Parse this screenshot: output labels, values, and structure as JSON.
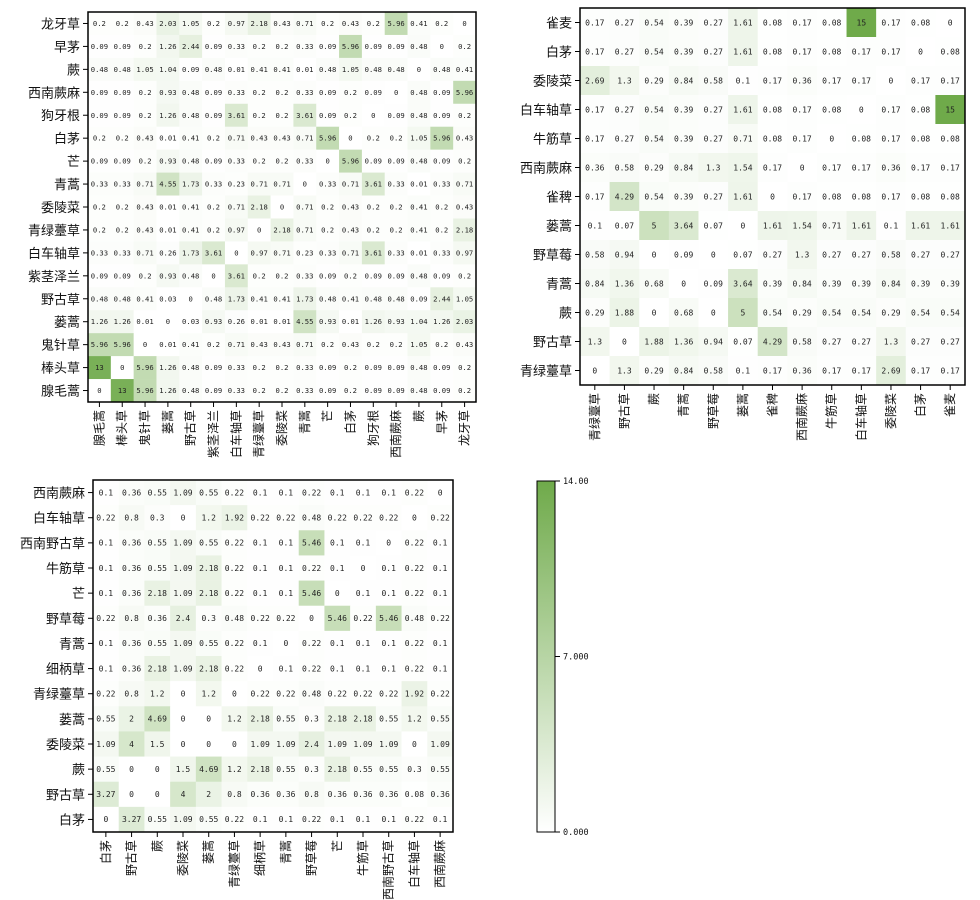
{
  "colors": {
    "low": "#ffffff",
    "high": "#6faa4a",
    "frame": "#000000",
    "text": "#222222"
  },
  "chart_data": [
    {
      "type": "heatmap",
      "title": "",
      "y_labels": [
        "龙牙草",
        "早茅",
        "蕨",
        "西南蕨麻",
        "狗牙根",
        "白茅",
        "芒",
        "青蒿",
        "委陵菜",
        "青绿薹草",
        "白车轴草",
        "紫茎泽兰",
        "野古草",
        "蒌蒿",
        "鬼针草",
        "棒头草",
        "腺毛蒿"
      ],
      "x_labels": [
        "腺毛蒿",
        "棒头草",
        "鬼针草",
        "蒌蒿",
        "野古草",
        "紫茎泽兰",
        "白车轴草",
        "青绿薹草",
        "委陵菜",
        "青蒿",
        "芒",
        "白茅",
        "狗牙根",
        "西南蕨麻",
        "蕨",
        "早茅",
        "龙牙草"
      ],
      "values": [
        [
          "0.2",
          "0.2",
          "0.43",
          "2.03",
          "1.05",
          "0.2",
          "0.97",
          "2.18",
          "0.43",
          "0.71",
          "0.2",
          "0.43",
          "0.2",
          "5.96",
          "0.41",
          "0.2",
          "0"
        ],
        [
          "0.09",
          "0.09",
          "0.2",
          "1.26",
          "2.44",
          "0.09",
          "0.33",
          "0.2",
          "0.2",
          "0.33",
          "0.09",
          "5.96",
          "0.09",
          "0.09",
          "0.48",
          "0",
          "0.2"
        ],
        [
          "0.48",
          "0.48",
          "1.05",
          "1.04",
          "0.09",
          "0.48",
          "0.01",
          "0.41",
          "0.41",
          "0.01",
          "0.48",
          "1.05",
          "0.48",
          "0.48",
          "0",
          "0.48",
          "0.41"
        ],
        [
          "0.09",
          "0.09",
          "0.2",
          "0.93",
          "0.48",
          "0.09",
          "0.33",
          "0.2",
          "0.2",
          "0.33",
          "0.09",
          "0.2",
          "0.09",
          "0",
          "0.48",
          "0.09",
          "5.96"
        ],
        [
          "0.09",
          "0.09",
          "0.2",
          "1.26",
          "0.48",
          "0.09",
          "3.61",
          "0.2",
          "0.2",
          "3.61",
          "0.09",
          "0.2",
          "0",
          "0.09",
          "0.48",
          "0.09",
          "0.2"
        ],
        [
          "0.2",
          "0.2",
          "0.43",
          "0.01",
          "0.41",
          "0.2",
          "0.71",
          "0.43",
          "0.43",
          "0.71",
          "5.96",
          "0",
          "0.2",
          "0.2",
          "1.05",
          "5.96",
          "0.43"
        ],
        [
          "0.09",
          "0.09",
          "0.2",
          "0.93",
          "0.48",
          "0.09",
          "0.33",
          "0.2",
          "0.2",
          "0.33",
          "0",
          "5.96",
          "0.09",
          "0.09",
          "0.48",
          "0.09",
          "0.2"
        ],
        [
          "0.33",
          "0.33",
          "0.71",
          "4.55",
          "1.73",
          "0.33",
          "0.23",
          "0.71",
          "0.71",
          "0",
          "0.33",
          "0.71",
          "3.61",
          "0.33",
          "0.01",
          "0.33",
          "0.71"
        ],
        [
          "0.2",
          "0.2",
          "0.43",
          "0.01",
          "0.41",
          "0.2",
          "0.71",
          "2.18",
          "0",
          "0.71",
          "0.2",
          "0.43",
          "0.2",
          "0.2",
          "0.41",
          "0.2",
          "0.43"
        ],
        [
          "0.2",
          "0.2",
          "0.43",
          "0.01",
          "0.41",
          "0.2",
          "0.97",
          "0",
          "2.18",
          "0.71",
          "0.2",
          "0.43",
          "0.2",
          "0.2",
          "0.41",
          "0.2",
          "2.18"
        ],
        [
          "0.33",
          "0.33",
          "0.71",
          "0.26",
          "1.73",
          "3.61",
          "0",
          "0.97",
          "0.71",
          "0.23",
          "0.33",
          "0.71",
          "3.61",
          "0.33",
          "0.01",
          "0.33",
          "0.97"
        ],
        [
          "0.09",
          "0.09",
          "0.2",
          "0.93",
          "0.48",
          "0",
          "3.61",
          "0.2",
          "0.2",
          "0.33",
          "0.09",
          "0.2",
          "0.09",
          "0.09",
          "0.48",
          "0.09",
          "0.2"
        ],
        [
          "0.48",
          "0.48",
          "0.41",
          "0.03",
          "0",
          "0.48",
          "1.73",
          "0.41",
          "0.41",
          "1.73",
          "0.48",
          "0.41",
          "0.48",
          "0.48",
          "0.09",
          "2.44",
          "1.05"
        ],
        [
          "1.26",
          "1.26",
          "0.01",
          "0",
          "0.03",
          "0.93",
          "0.26",
          "0.01",
          "0.01",
          "4.55",
          "0.93",
          "0.01",
          "1.26",
          "0.93",
          "1.04",
          "1.26",
          "2.03"
        ],
        [
          "5.96",
          "5.96",
          "0",
          "0.01",
          "0.41",
          "0.2",
          "0.71",
          "0.43",
          "0.43",
          "0.71",
          "0.2",
          "0.43",
          "0.2",
          "0.2",
          "1.05",
          "0.2",
          "0.43"
        ],
        [
          "13",
          "0",
          "5.96",
          "1.26",
          "0.48",
          "0.09",
          "0.33",
          "0.2",
          "0.2",
          "0.33",
          "0.09",
          "0.2",
          "0.09",
          "0.09",
          "0.48",
          "0.09",
          "0.2"
        ],
        [
          "0",
          "13",
          "5.96",
          "1.26",
          "0.48",
          "0.09",
          "0.33",
          "0.2",
          "0.2",
          "0.33",
          "0.09",
          "0.2",
          "0.09",
          "0.09",
          "0.48",
          "0.09",
          "0.2"
        ]
      ]
    },
    {
      "type": "heatmap",
      "title": "",
      "y_labels": [
        "雀麦",
        "白茅",
        "委陵菜",
        "白车轴草",
        "牛筋草",
        "西南蕨麻",
        "雀稗",
        "蒌蒿",
        "野草莓",
        "青蒿",
        "蕨",
        "野古草",
        "青绿薹草"
      ],
      "x_labels": [
        "青绿薹草",
        "野古草",
        "蕨",
        "青蒿",
        "野草莓",
        "蒌蒿",
        "雀稗",
        "西南蕨麻",
        "牛筋草",
        "白车轴草",
        "委陵菜",
        "白茅",
        "雀麦"
      ],
      "values": [
        [
          "0.17",
          "0.27",
          "0.54",
          "0.39",
          "0.27",
          "1.61",
          "0.08",
          "0.17",
          "0.08",
          "15",
          "0.17",
          "0.08",
          "0"
        ],
        [
          "0.17",
          "0.27",
          "0.54",
          "0.39",
          "0.27",
          "1.61",
          "0.08",
          "0.17",
          "0.08",
          "0.17",
          "0.17",
          "0",
          "0.08"
        ],
        [
          "2.69",
          "1.3",
          "0.29",
          "0.84",
          "0.58",
          "0.1",
          "0.17",
          "0.36",
          "0.17",
          "0.17",
          "0",
          "0.17",
          "0.17"
        ],
        [
          "0.17",
          "0.27",
          "0.54",
          "0.39",
          "0.27",
          "1.61",
          "0.08",
          "0.17",
          "0.08",
          "0",
          "0.17",
          "0.08",
          "15"
        ],
        [
          "0.17",
          "0.27",
          "0.54",
          "0.39",
          "0.27",
          "0.71",
          "0.08",
          "0.17",
          "0",
          "0.08",
          "0.17",
          "0.08",
          "0.08"
        ],
        [
          "0.36",
          "0.58",
          "0.29",
          "0.84",
          "1.3",
          "1.54",
          "0.17",
          "0",
          "0.17",
          "0.17",
          "0.36",
          "0.17",
          "0.17"
        ],
        [
          "0.17",
          "4.29",
          "0.54",
          "0.39",
          "0.27",
          "1.61",
          "0",
          "0.17",
          "0.08",
          "0.08",
          "0.17",
          "0.08",
          "0.08"
        ],
        [
          "0.1",
          "0.07",
          "5",
          "3.64",
          "0.07",
          "0",
          "1.61",
          "1.54",
          "0.71",
          "1.61",
          "0.1",
          "1.61",
          "1.61"
        ],
        [
          "0.58",
          "0.94",
          "0",
          "0.09",
          "0",
          "0.07",
          "0.27",
          "1.3",
          "0.27",
          "0.27",
          "0.58",
          "0.27",
          "0.27"
        ],
        [
          "0.84",
          "1.36",
          "0.68",
          "0",
          "0.09",
          "3.64",
          "0.39",
          "0.84",
          "0.39",
          "0.39",
          "0.84",
          "0.39",
          "0.39"
        ],
        [
          "0.29",
          "1.88",
          "0",
          "0.68",
          "0",
          "5",
          "0.54",
          "0.29",
          "0.54",
          "0.54",
          "0.29",
          "0.54",
          "0.54"
        ],
        [
          "1.3",
          "0",
          "1.88",
          "1.36",
          "0.94",
          "0.07",
          "4.29",
          "0.58",
          "0.27",
          "0.27",
          "1.3",
          "0.27",
          "0.27"
        ],
        [
          "0",
          "1.3",
          "0.29",
          "0.84",
          "0.58",
          "0.1",
          "0.17",
          "0.36",
          "0.17",
          "0.17",
          "2.69",
          "0.17",
          "0.17"
        ]
      ]
    },
    {
      "type": "heatmap",
      "title": "",
      "y_labels": [
        "西南蕨麻",
        "白车轴草",
        "西南野古草",
        "牛筋草",
        "芒",
        "野草莓",
        "青蒿",
        "细柄草",
        "青绿薹草",
        "蒌蒿",
        "委陵菜",
        "蕨",
        "野古草",
        "白茅"
      ],
      "x_labels": [
        "白茅",
        "野古草",
        "蕨",
        "委陵菜",
        "蒌蒿",
        "青绿薹草",
        "细柄草",
        "青蒿",
        "野草莓",
        "芒",
        "牛筋草",
        "西南野古草",
        "白车轴草",
        "西南蕨麻"
      ],
      "values": [
        [
          "0.1",
          "0.36",
          "0.55",
          "1.09",
          "0.55",
          "0.22",
          "0.1",
          "0.1",
          "0.22",
          "0.1",
          "0.1",
          "0.1",
          "0.22",
          "0"
        ],
        [
          "0.22",
          "0.8",
          "0.3",
          "0",
          "1.2",
          "1.92",
          "0.22",
          "0.22",
          "0.48",
          "0.22",
          "0.22",
          "0.22",
          "0",
          "0.22"
        ],
        [
          "0.1",
          "0.36",
          "0.55",
          "1.09",
          "0.55",
          "0.22",
          "0.1",
          "0.1",
          "5.46",
          "0.1",
          "0.1",
          "0",
          "0.22",
          "0.1"
        ],
        [
          "0.1",
          "0.36",
          "0.55",
          "1.09",
          "2.18",
          "0.22",
          "0.1",
          "0.1",
          "0.22",
          "0.1",
          "0",
          "0.1",
          "0.22",
          "0.1"
        ],
        [
          "0.1",
          "0.36",
          "2.18",
          "1.09",
          "2.18",
          "0.22",
          "0.1",
          "0.1",
          "5.46",
          "0",
          "0.1",
          "0.1",
          "0.22",
          "0.1"
        ],
        [
          "0.22",
          "0.8",
          "0.36",
          "2.4",
          "0.3",
          "0.48",
          "0.22",
          "0.22",
          "0",
          "5.46",
          "0.22",
          "5.46",
          "0.48",
          "0.22"
        ],
        [
          "0.1",
          "0.36",
          "0.55",
          "1.09",
          "0.55",
          "0.22",
          "0.1",
          "0",
          "0.22",
          "0.1",
          "0.1",
          "0.1",
          "0.22",
          "0.1"
        ],
        [
          "0.1",
          "0.36",
          "2.18",
          "1.09",
          "2.18",
          "0.22",
          "0",
          "0.1",
          "0.22",
          "0.1",
          "0.1",
          "0.1",
          "0.22",
          "0.1"
        ],
        [
          "0.22",
          "0.8",
          "1.2",
          "0",
          "1.2",
          "0",
          "0.22",
          "0.22",
          "0.48",
          "0.22",
          "0.22",
          "0.22",
          "1.92",
          "0.22"
        ],
        [
          "0.55",
          "2",
          "4.69",
          "0",
          "0",
          "1.2",
          "2.18",
          "0.55",
          "0.3",
          "2.18",
          "2.18",
          "0.55",
          "1.2",
          "0.55"
        ],
        [
          "1.09",
          "4",
          "1.5",
          "0",
          "0",
          "0",
          "1.09",
          "1.09",
          "2.4",
          "1.09",
          "1.09",
          "1.09",
          "0",
          "1.09"
        ],
        [
          "0.55",
          "0",
          "0",
          "1.5",
          "4.69",
          "1.2",
          "2.18",
          "0.55",
          "0.3",
          "2.18",
          "0.55",
          "0.55",
          "0.3",
          "0.55"
        ],
        [
          "3.27",
          "0",
          "0",
          "4",
          "2",
          "0.8",
          "0.36",
          "0.36",
          "0.8",
          "0.36",
          "0.36",
          "0.36",
          "0.08",
          "0.36"
        ],
        [
          "0",
          "3.27",
          "0.55",
          "1.09",
          "0.55",
          "0.22",
          "0.1",
          "0.1",
          "0.22",
          "0.1",
          "0.1",
          "0.1",
          "0.22",
          "0.1"
        ]
      ]
    },
    {
      "type": "colorbar",
      "range": [
        0,
        14
      ],
      "ticks": [
        "0.000",
        "7.000",
        "14.00"
      ],
      "tick_values": [
        0,
        7,
        14
      ]
    }
  ]
}
